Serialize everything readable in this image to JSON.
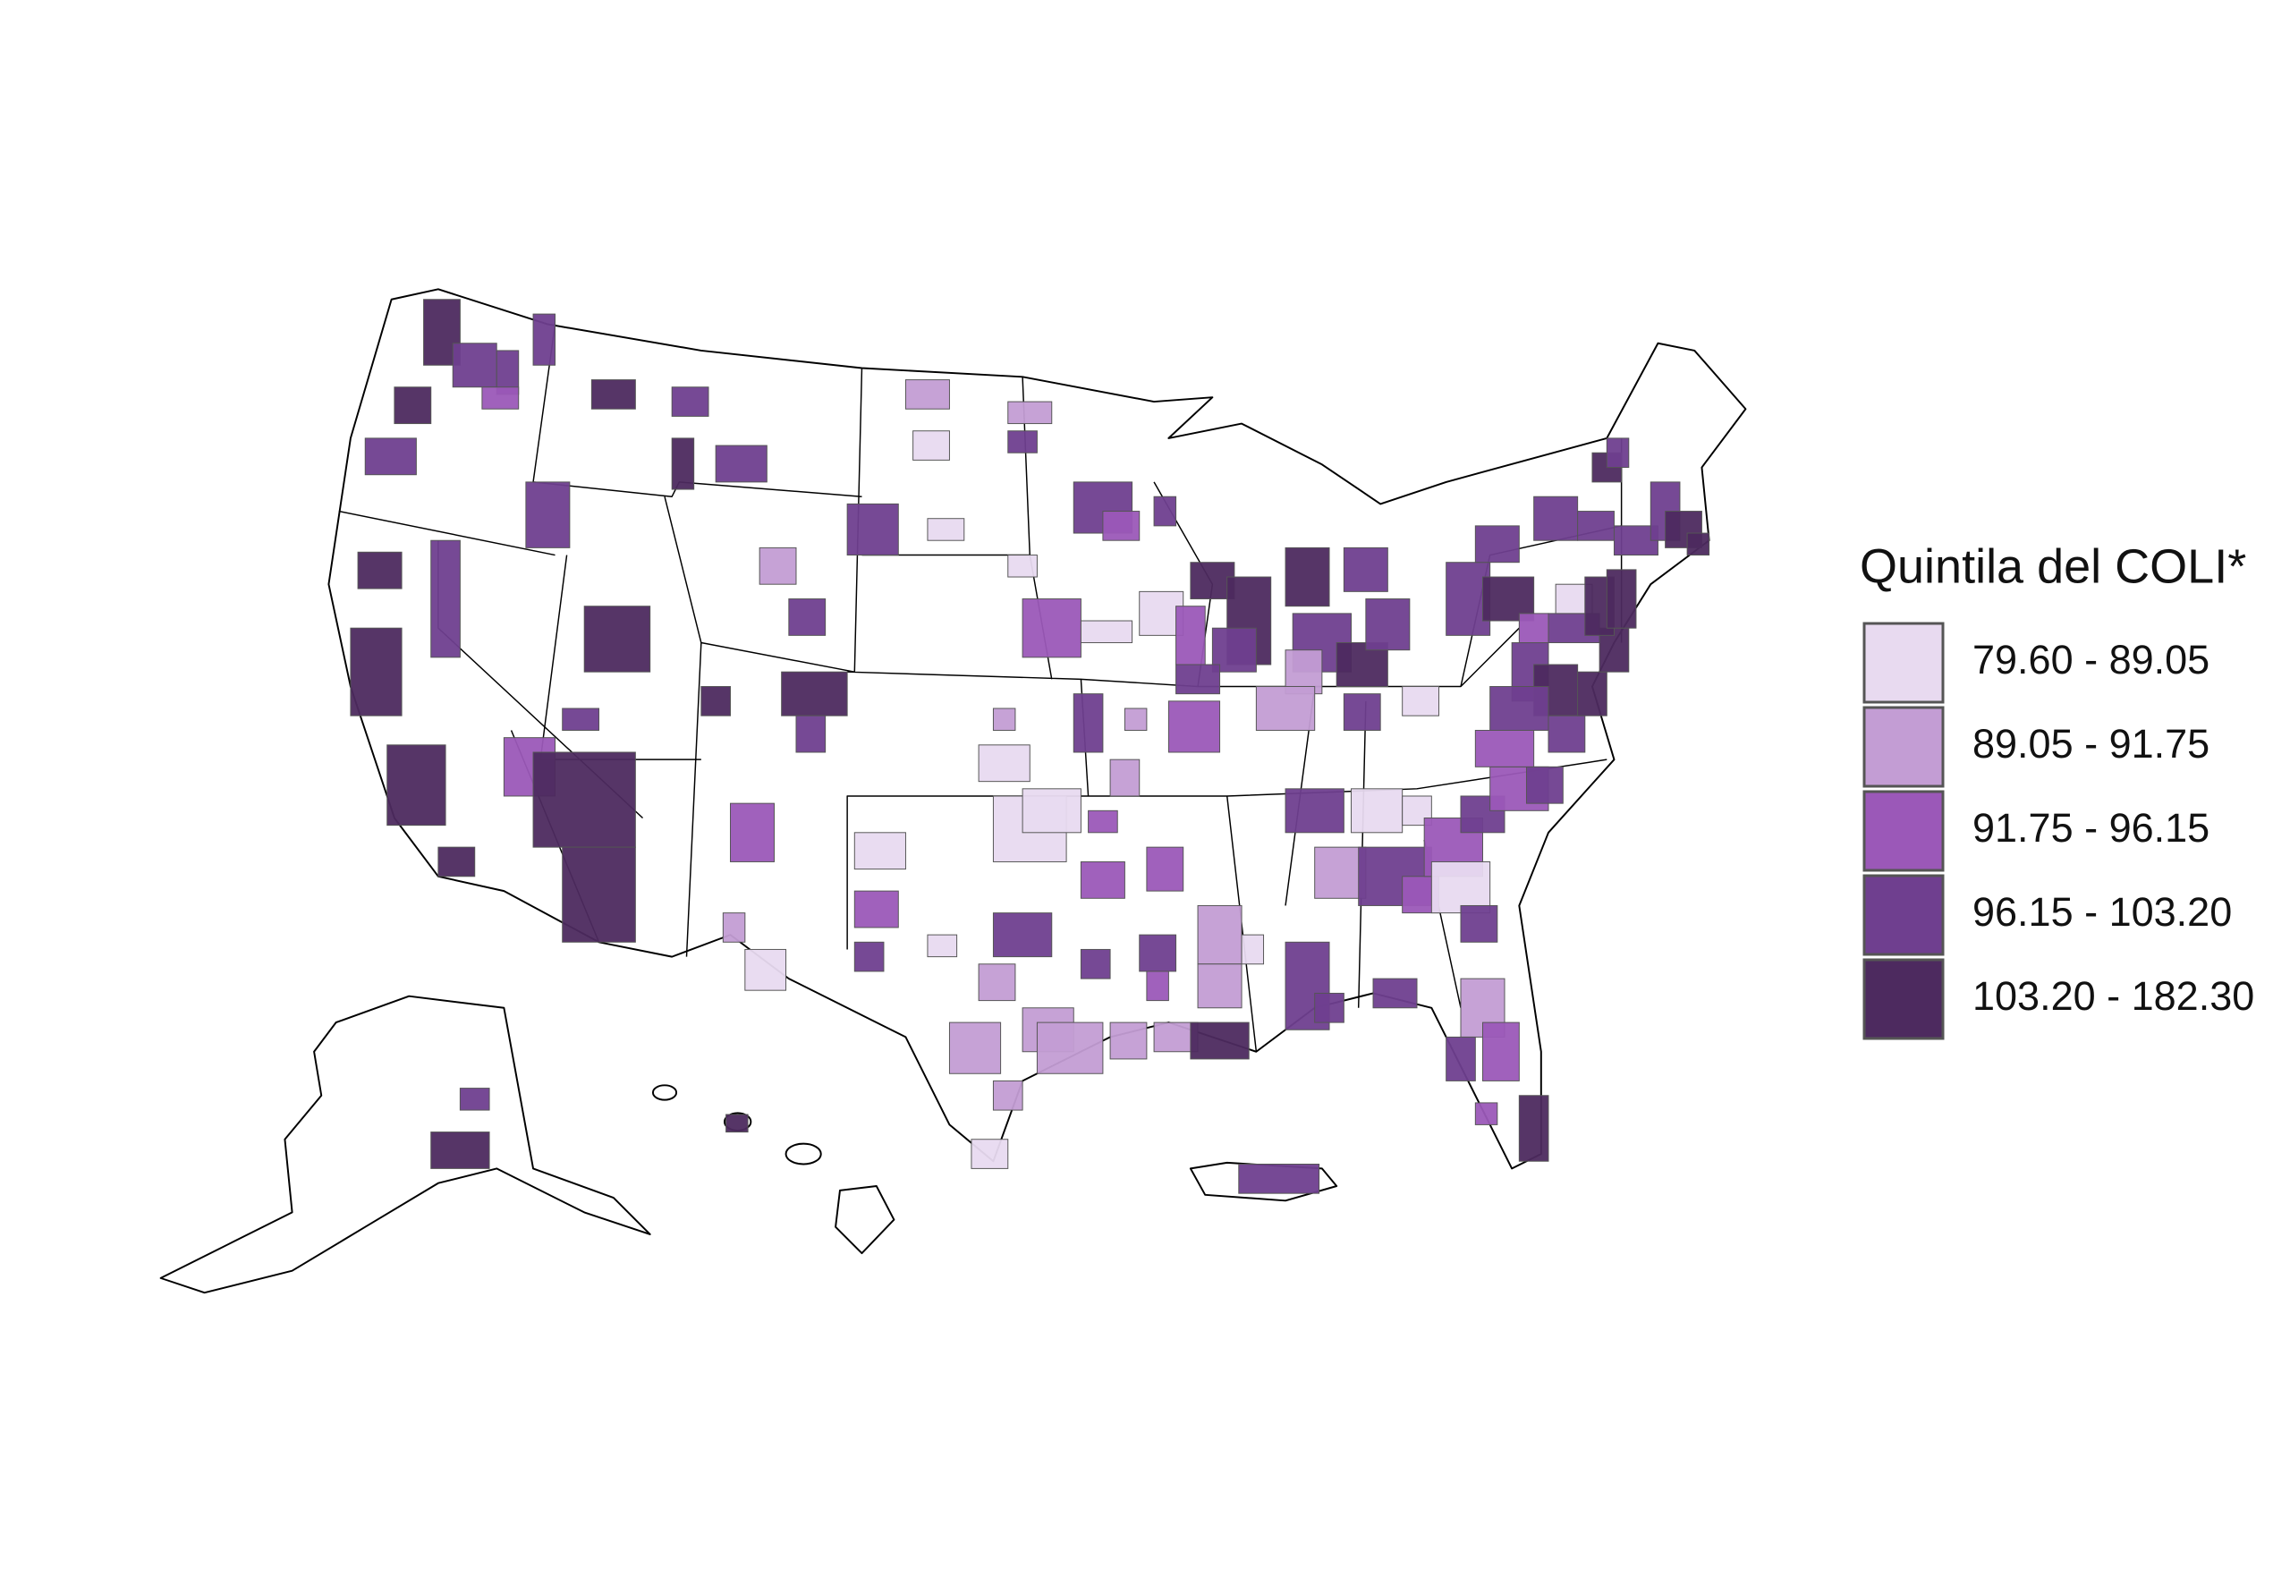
{
  "legend": {
    "title": "Quintila del COLI*",
    "items": [
      {
        "label": "79.60 - 89.05",
        "color": "#e8daf0"
      },
      {
        "label": "89.05 - 91.75",
        "color": "#c39dd4"
      },
      {
        "label": "91.75 - 96.15",
        "color": "#9b58b8"
      },
      {
        "label": "96.15 - 103.20",
        "color": "#6f3f8f"
      },
      {
        "label": "103.20 - 182.30",
        "color": "#4d2a5f"
      }
    ]
  }
}
